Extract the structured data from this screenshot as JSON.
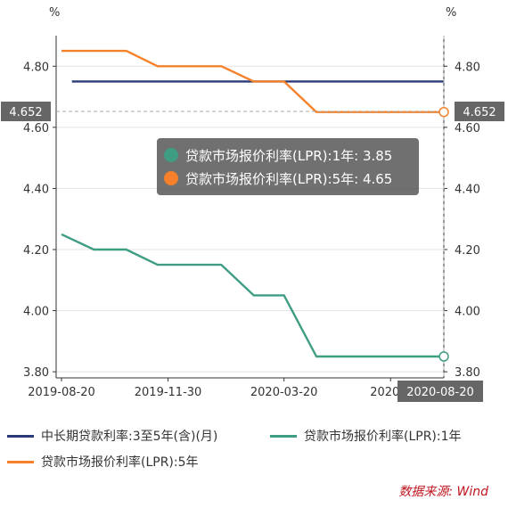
{
  "chart_data": {
    "type": "line",
    "y_unit_left": "%",
    "y_unit_right": "%",
    "ylim": [
      3.78,
      4.9
    ],
    "y_ticks": [
      "3.80",
      "4.00",
      "4.20",
      "4.40",
      "4.60",
      "4.80"
    ],
    "x_range": [
      "2019-08-20",
      "2020-08-20"
    ],
    "x_tick_labels": [
      {
        "date": "2019-08-20",
        "label": "2019-08-20"
      },
      {
        "date": "2019-11-30",
        "label": "2019-11-30"
      },
      {
        "date": "2020-03-20",
        "label": "2020-03-20"
      },
      {
        "date": "2020-06-30",
        "label": "2020-0"
      }
    ],
    "grid": true,
    "legend_position": "bottom",
    "series": [
      {
        "name": "中长期贷款利率:3至5年(含)(月)",
        "color": "#2b3a78",
        "points": [
          [
            "2019-08-30",
            4.75
          ],
          [
            "2020-08-20",
            4.75
          ]
        ]
      },
      {
        "name": "贷款市场报价利率(LPR):1年",
        "color": "#3f9d84",
        "points": [
          [
            "2019-08-20",
            4.25
          ],
          [
            "2019-09-20",
            4.2
          ],
          [
            "2019-10-21",
            4.2
          ],
          [
            "2019-11-20",
            4.15
          ],
          [
            "2019-12-20",
            4.15
          ],
          [
            "2020-01-20",
            4.15
          ],
          [
            "2020-02-20",
            4.05
          ],
          [
            "2020-03-20",
            4.05
          ],
          [
            "2020-04-20",
            3.85
          ],
          [
            "2020-05-20",
            3.85
          ],
          [
            "2020-06-22",
            3.85
          ],
          [
            "2020-07-20",
            3.85
          ],
          [
            "2020-08-20",
            3.85
          ]
        ]
      },
      {
        "name": "贷款市场报价利率(LPR):5年",
        "color": "#f5822a",
        "points": [
          [
            "2019-08-20",
            4.85
          ],
          [
            "2019-09-20",
            4.85
          ],
          [
            "2019-10-21",
            4.85
          ],
          [
            "2019-11-20",
            4.8
          ],
          [
            "2019-12-20",
            4.8
          ],
          [
            "2020-01-20",
            4.8
          ],
          [
            "2020-02-20",
            4.75
          ],
          [
            "2020-03-20",
            4.75
          ],
          [
            "2020-04-20",
            4.65
          ],
          [
            "2020-05-20",
            4.65
          ],
          [
            "2020-06-22",
            4.65
          ],
          [
            "2020-07-20",
            4.65
          ],
          [
            "2020-08-20",
            4.65
          ]
        ]
      }
    ],
    "crosshair": {
      "x_label": "2020-08-20",
      "y_label": "4.652",
      "y_value": 4.652
    }
  },
  "tooltip": {
    "rows": [
      {
        "label": "贷款市场报价利率(LPR):1年: 3.85",
        "color": "#3f9d84"
      },
      {
        "label": "贷款市场报价利率(LPR):5年: 4.65",
        "color": "#f5822a"
      }
    ]
  },
  "source": "数据来源: Wind"
}
